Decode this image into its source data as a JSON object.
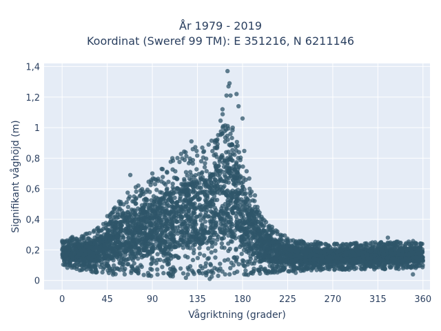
{
  "chart_data": {
    "type": "scatter",
    "title_lines": [
      "År 1979 - 2019",
      "Koordinat (Sweref 99 TM): E 351216, N 6211146"
    ],
    "xlabel": "Vågriktning (grader)",
    "ylabel": "Signifikant våghöjd (m)",
    "xlim": [
      -18,
      367
    ],
    "ylim": [
      -0.06,
      1.42
    ],
    "xticks": [
      0,
      45,
      90,
      135,
      180,
      225,
      270,
      315,
      360
    ],
    "xtick_labels": [
      "0",
      "45",
      "90",
      "135",
      "180",
      "225",
      "270",
      "315",
      "360"
    ],
    "yticks": [
      0,
      0.2,
      0.4,
      0.6,
      0.8,
      1.0,
      1.2,
      1.4
    ],
    "ytick_labels": [
      "0",
      "0,2",
      "0,4",
      "0,6",
      "0,8",
      "1",
      "1,2",
      "1,4"
    ],
    "grid": true,
    "marker_color": "#2f5569",
    "background_color": "#e5ecf6",
    "envelope": [
      {
        "x": 0,
        "min": 0.09,
        "max": 0.26
      },
      {
        "x": 15,
        "min": 0.07,
        "max": 0.3
      },
      {
        "x": 30,
        "min": 0.05,
        "max": 0.32
      },
      {
        "x": 45,
        "min": 0.04,
        "max": 0.42
      },
      {
        "x": 60,
        "min": 0.03,
        "max": 0.55
      },
      {
        "x": 75,
        "min": 0.03,
        "max": 0.62
      },
      {
        "x": 90,
        "min": 0.02,
        "max": 0.68
      },
      {
        "x": 105,
        "min": 0.02,
        "max": 0.76
      },
      {
        "x": 120,
        "min": 0.02,
        "max": 0.84
      },
      {
        "x": 135,
        "min": 0.01,
        "max": 0.88
      },
      {
        "x": 150,
        "min": 0.01,
        "max": 0.95
      },
      {
        "x": 160,
        "min": 0.02,
        "max": 1.1
      },
      {
        "x": 170,
        "min": 0.02,
        "max": 1.05
      },
      {
        "x": 180,
        "min": 0.02,
        "max": 0.9
      },
      {
        "x": 190,
        "min": 0.03,
        "max": 0.6
      },
      {
        "x": 200,
        "min": 0.04,
        "max": 0.42
      },
      {
        "x": 215,
        "min": 0.05,
        "max": 0.32
      },
      {
        "x": 230,
        "min": 0.06,
        "max": 0.27
      },
      {
        "x": 270,
        "min": 0.07,
        "max": 0.24
      },
      {
        "x": 315,
        "min": 0.07,
        "max": 0.25
      },
      {
        "x": 360,
        "min": 0.08,
        "max": 0.26
      }
    ],
    "outliers": [
      {
        "x": 165,
        "y": 1.37
      },
      {
        "x": 167,
        "y": 1.29
      },
      {
        "x": 166,
        "y": 1.27
      },
      {
        "x": 174,
        "y": 1.22
      },
      {
        "x": 164,
        "y": 1.21
      },
      {
        "x": 168,
        "y": 1.21
      },
      {
        "x": 176,
        "y": 1.14
      },
      {
        "x": 160,
        "y": 1.12
      },
      {
        "x": 180,
        "y": 1.06
      },
      {
        "x": 68,
        "y": 0.69
      },
      {
        "x": 90,
        "y": 0.7
      },
      {
        "x": 129,
        "y": 0.91
      },
      {
        "x": 110,
        "y": 0.8
      },
      {
        "x": 325,
        "y": 0.28
      },
      {
        "x": 233,
        "y": 0.05
      },
      {
        "x": 350,
        "y": 0.04
      }
    ]
  }
}
